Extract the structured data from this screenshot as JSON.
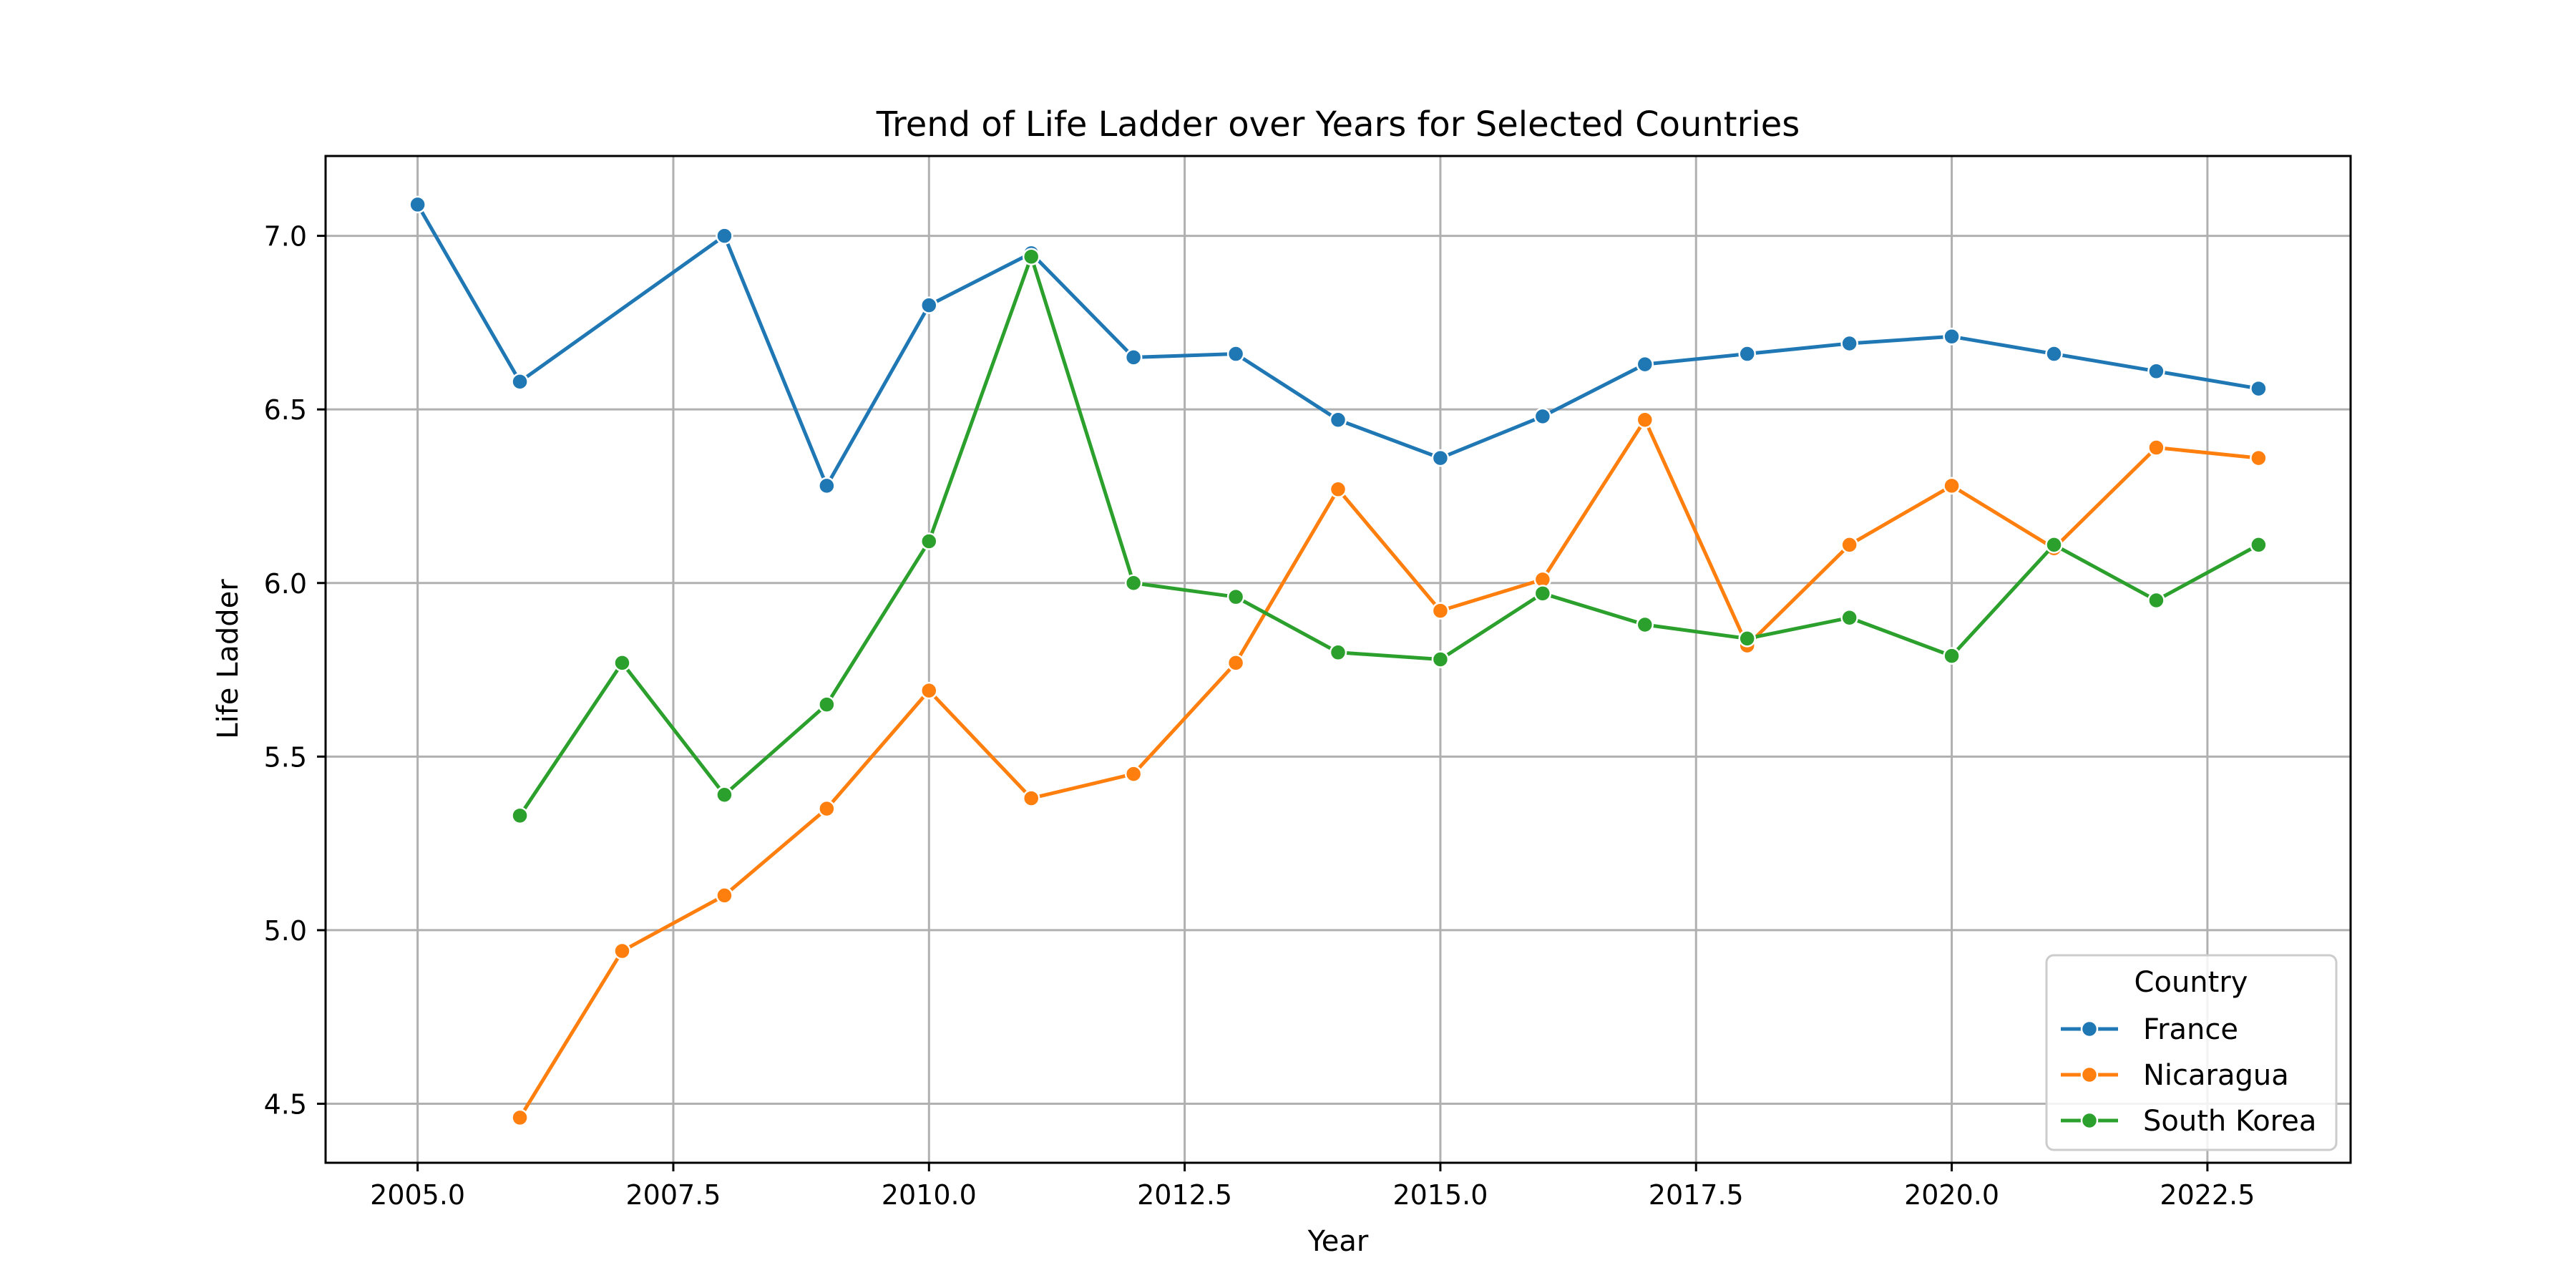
{
  "chart_data": {
    "type": "line",
    "title": "Trend of Life Ladder over Years for Selected Countries",
    "xlabel": "Year",
    "ylabel": "Life Ladder",
    "xlim": [
      2004.1,
      2023.9
    ],
    "ylim": [
      4.33,
      7.23
    ],
    "xticks": [
      "2005.0",
      "2007.5",
      "2010.0",
      "2012.5",
      "2015.0",
      "2017.5",
      "2020.0",
      "2022.5"
    ],
    "yticks": [
      "4.5",
      "5.0",
      "5.5",
      "6.0",
      "6.5",
      "7.0"
    ],
    "grid": true,
    "legend": {
      "title": "Country",
      "position": "lower-right"
    },
    "series": [
      {
        "name": "France",
        "color": "#1f77b4",
        "x": [
          2005,
          2006,
          2008,
          2009,
          2010,
          2011,
          2012,
          2013,
          2014,
          2015,
          2016,
          2017,
          2018,
          2019,
          2020,
          2021,
          2022,
          2023
        ],
        "y": [
          7.09,
          6.58,
          7.0,
          6.28,
          6.8,
          6.95,
          6.65,
          6.66,
          6.47,
          6.36,
          6.48,
          6.63,
          6.66,
          6.69,
          6.71,
          6.66,
          6.61,
          6.56
        ]
      },
      {
        "name": "Nicaragua",
        "color": "#ff7f0e",
        "x": [
          2006,
          2007,
          2008,
          2009,
          2010,
          2011,
          2012,
          2013,
          2014,
          2015,
          2016,
          2017,
          2018,
          2019,
          2020,
          2021,
          2022,
          2023
        ],
        "y": [
          4.46,
          4.94,
          5.1,
          5.35,
          5.69,
          5.38,
          5.45,
          5.77,
          6.27,
          5.92,
          6.01,
          6.47,
          5.82,
          6.11,
          6.28,
          6.1,
          6.39,
          6.36
        ]
      },
      {
        "name": "South Korea",
        "color": "#2ca02c",
        "x": [
          2006,
          2007,
          2008,
          2009,
          2010,
          2011,
          2012,
          2013,
          2014,
          2015,
          2016,
          2017,
          2018,
          2019,
          2020,
          2021,
          2022,
          2023
        ],
        "y": [
          5.33,
          5.77,
          5.39,
          5.65,
          6.12,
          6.94,
          6.0,
          5.96,
          5.8,
          5.78,
          5.97,
          5.88,
          5.84,
          5.9,
          5.79,
          6.11,
          5.95,
          6.11
        ]
      }
    ]
  }
}
